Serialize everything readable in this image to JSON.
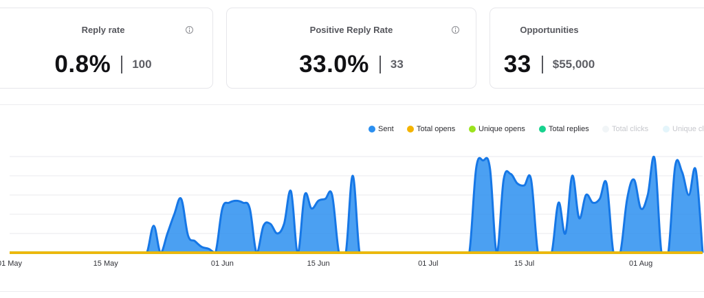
{
  "cards": [
    {
      "title": "Reply rate",
      "value": "0.8%",
      "sub": "100"
    },
    {
      "title": "Positive Reply Rate",
      "value": "33.0%",
      "sub": "33"
    },
    {
      "title": "Opportunities",
      "value": "33",
      "sub": "$55,000"
    }
  ],
  "legend": [
    {
      "label": "Sent",
      "color": "#2b8ff0",
      "active": true
    },
    {
      "label": "Total opens",
      "color": "#f4b400",
      "active": true
    },
    {
      "label": "Unique opens",
      "color": "#9be31d",
      "active": true
    },
    {
      "label": "Total replies",
      "color": "#17d28e",
      "active": true
    },
    {
      "label": "Total clicks",
      "color": "#f1f5f7",
      "active": false
    },
    {
      "label": "Unique cl",
      "color": "#e4f5fb",
      "active": false
    }
  ],
  "chart_data": {
    "type": "area",
    "xlabel": "",
    "ylabel": "",
    "x_ticks": [
      "01 May",
      "15 May",
      "01 Jun",
      "15 Jun",
      "01 Jul",
      "15 Jul",
      "01 Aug"
    ],
    "ylim": [
      0,
      5
    ],
    "grid": true,
    "legend_position": "top-right",
    "series": [
      {
        "name": "Sent",
        "color": "#2b8ff0",
        "x": [
          0,
          1,
          2,
          3,
          4,
          5,
          6,
          7,
          8,
          9,
          10,
          11,
          12,
          13,
          14,
          15,
          16,
          17,
          18,
          19,
          20,
          21,
          22,
          23,
          24,
          25,
          26,
          27,
          28,
          29,
          30,
          31,
          32,
          33,
          34,
          35,
          36,
          37,
          38,
          39,
          40,
          41,
          42,
          43,
          44,
          45,
          46,
          47,
          48,
          49,
          50,
          51,
          52,
          53,
          54,
          55,
          56,
          57,
          58,
          59,
          60,
          61,
          62,
          63,
          64,
          65,
          66,
          67,
          68,
          69,
          70,
          71,
          72,
          73,
          74,
          75,
          76,
          77,
          78,
          79,
          80,
          81,
          82,
          83,
          84,
          85,
          86,
          87,
          88,
          89,
          90,
          91,
          92,
          93,
          94,
          95,
          96,
          97,
          98,
          99,
          100,
          101
        ],
        "y": [
          0,
          0,
          0,
          0,
          0,
          0,
          0,
          0,
          0,
          0,
          0,
          0,
          0,
          0,
          0,
          0,
          0,
          0,
          0,
          0,
          0,
          1.4,
          0,
          1.0,
          2.0,
          2.8,
          0.9,
          0.6,
          0.3,
          0.2,
          0,
          2.3,
          2.6,
          2.7,
          2.6,
          2.3,
          0,
          1.4,
          1.5,
          1.0,
          1.5,
          3.2,
          0,
          3.0,
          2.3,
          2.7,
          2.8,
          3.0,
          0,
          0,
          4.0,
          0,
          0,
          0,
          0,
          0,
          0,
          0,
          0,
          0,
          0,
          0,
          0,
          0,
          0,
          0,
          0,
          0,
          4.4,
          4.8,
          4.4,
          0,
          3.8,
          4.1,
          3.6,
          3.5,
          3.8,
          0,
          0,
          0,
          2.6,
          1.0,
          4.0,
          1.8,
          3.0,
          2.6,
          2.8,
          3.6,
          0,
          0,
          2.8,
          3.8,
          2.3,
          3.0,
          4.9,
          0,
          0,
          4.5,
          4.2,
          3.0,
          4.3,
          0
        ]
      },
      {
        "name": "Total opens",
        "color": "#f4b400",
        "x": [
          0,
          101
        ],
        "y": [
          0,
          0
        ]
      },
      {
        "name": "Unique opens",
        "color": "#9be31d",
        "x": [
          0,
          101
        ],
        "y": [
          0,
          0
        ]
      },
      {
        "name": "Total replies",
        "color": "#17d28e",
        "x": [
          0,
          101
        ],
        "y": [
          0,
          0
        ]
      }
    ]
  }
}
